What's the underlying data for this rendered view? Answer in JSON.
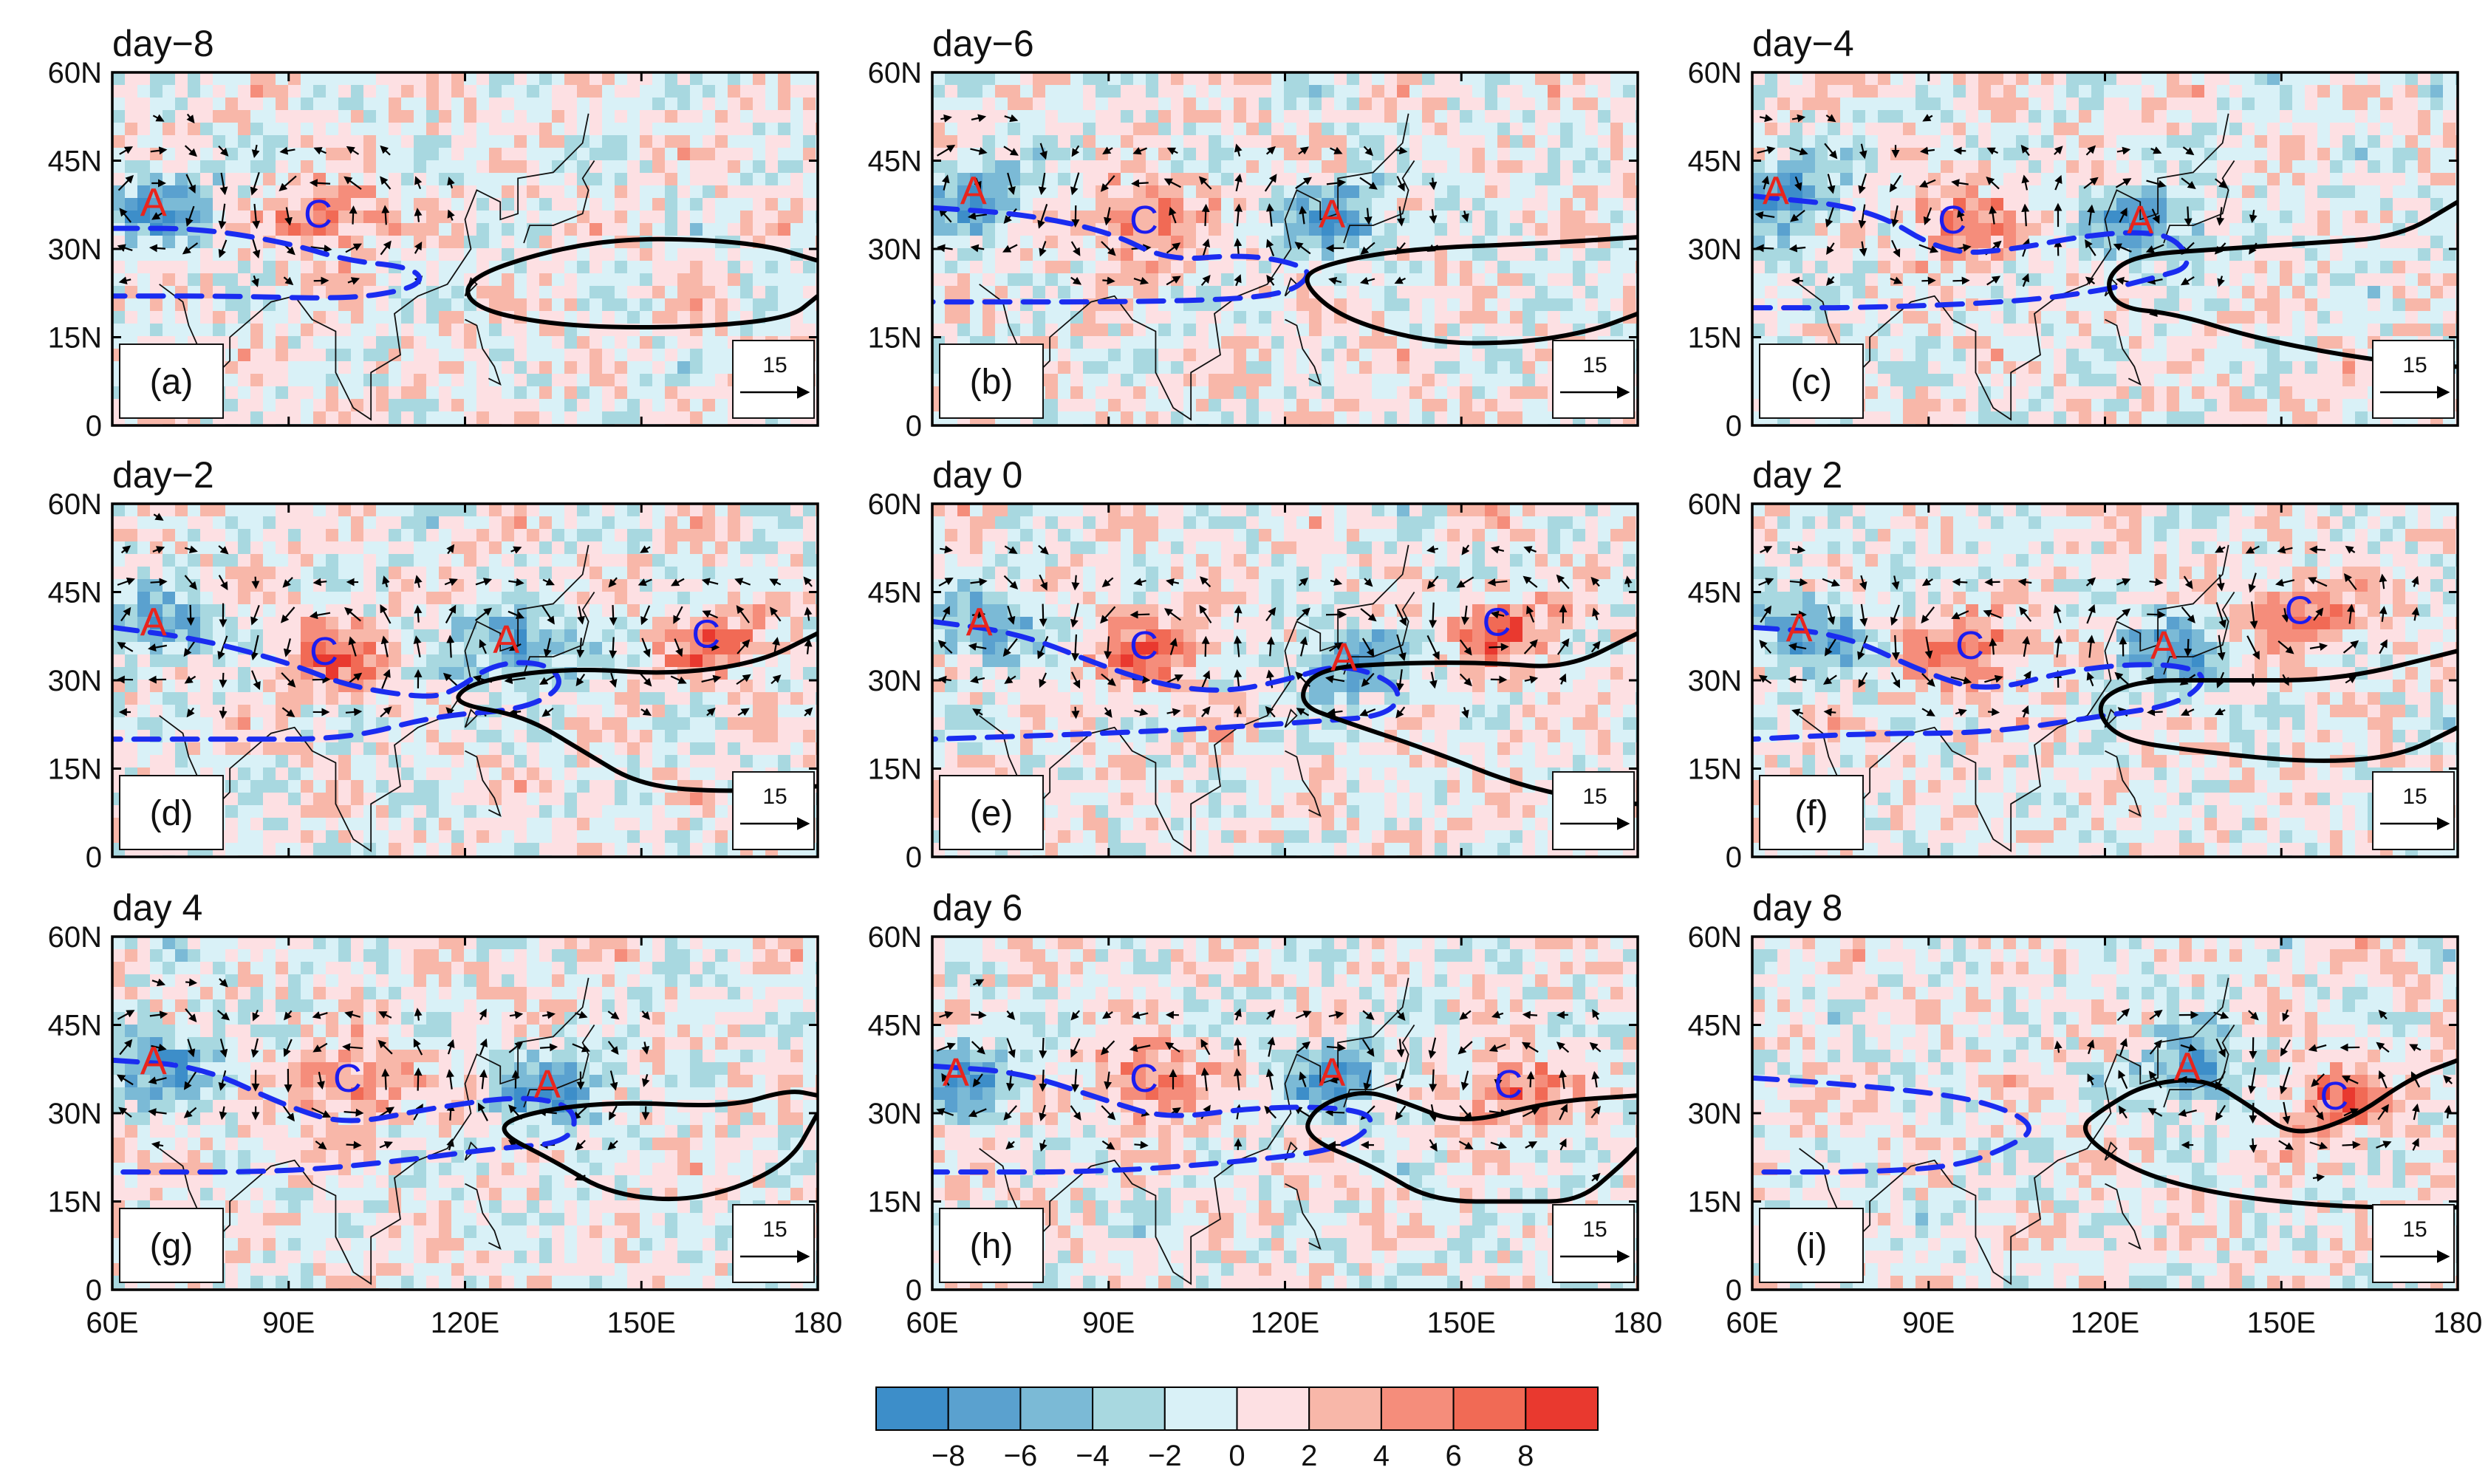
{
  "chart_data": {
    "type": "map-composite",
    "panels": [
      {
        "id": "a",
        "title": "day−8",
        "label": "(a)",
        "centers": [
          {
            "type": "A",
            "lon": 67,
            "lat": 38
          },
          {
            "type": "C",
            "lon": 95,
            "lat": 36
          }
        ],
        "blue_dashed": [
          [
            60,
            33.5
          ],
          [
            75,
            33.5
          ],
          [
            90,
            31
          ],
          [
            100,
            28
          ],
          [
            110,
            27
          ],
          [
            113,
            25
          ],
          [
            110,
            23
          ],
          [
            100,
            21.5
          ],
          [
            80,
            22
          ],
          [
            60,
            22
          ]
        ],
        "black_solid": [
          [
            180,
            28
          ],
          [
            170,
            31
          ],
          [
            150,
            32
          ],
          [
            135,
            30
          ],
          [
            120,
            25
          ],
          [
            121,
            20
          ],
          [
            135,
            17
          ],
          [
            155,
            16.5
          ],
          [
            175,
            18
          ],
          [
            180,
            22
          ]
        ]
      },
      {
        "id": "b",
        "title": "day−6",
        "label": "(b)",
        "centers": [
          {
            "type": "A",
            "lon": 67,
            "lat": 40
          },
          {
            "type": "C",
            "lon": 96,
            "lat": 35
          },
          {
            "type": "A",
            "lon": 128,
            "lat": 36
          }
        ],
        "blue_dashed": [
          [
            60,
            37
          ],
          [
            75,
            36
          ],
          [
            90,
            33
          ],
          [
            100,
            28
          ],
          [
            112,
            29
          ],
          [
            120,
            28
          ],
          [
            125,
            26
          ],
          [
            120,
            22
          ],
          [
            100,
            21
          ],
          [
            60,
            21
          ]
        ],
        "black_solid": [
          [
            180,
            32
          ],
          [
            165,
            31
          ],
          [
            140,
            30
          ],
          [
            125,
            27
          ],
          [
            123,
            24
          ],
          [
            130,
            18
          ],
          [
            145,
            14
          ],
          [
            160,
            14
          ],
          [
            172,
            16
          ],
          [
            180,
            19
          ]
        ]
      },
      {
        "id": "c",
        "title": "day−4",
        "label": "(c)",
        "centers": [
          {
            "type": "A",
            "lon": 64,
            "lat": 40
          },
          {
            "type": "C",
            "lon": 94,
            "lat": 35
          },
          {
            "type": "A",
            "lon": 126,
            "lat": 35
          }
        ],
        "blue_dashed": [
          [
            60,
            39
          ],
          [
            80,
            37
          ],
          [
            93,
            29
          ],
          [
            105,
            30
          ],
          [
            115,
            32
          ],
          [
            125,
            33
          ],
          [
            132,
            32
          ],
          [
            135,
            27
          ],
          [
            128,
            25
          ],
          [
            120,
            23
          ],
          [
            105,
            21
          ],
          [
            80,
            20
          ],
          [
            60,
            20
          ]
        ],
        "black_solid": [
          [
            180,
            38
          ],
          [
            170,
            32
          ],
          [
            155,
            31
          ],
          [
            140,
            30
          ],
          [
            125,
            29
          ],
          [
            120,
            25
          ],
          [
            122,
            20
          ],
          [
            132,
            19
          ],
          [
            145,
            15
          ],
          [
            160,
            12
          ],
          [
            175,
            10
          ],
          [
            180,
            10
          ]
        ]
      },
      {
        "id": "d",
        "title": "day−2",
        "label": "(d)",
        "centers": [
          {
            "type": "A",
            "lon": 67,
            "lat": 40
          },
          {
            "type": "C",
            "lon": 96,
            "lat": 35
          },
          {
            "type": "A",
            "lon": 127,
            "lat": 37
          },
          {
            "type": "C",
            "lon": 161,
            "lat": 38
          }
        ],
        "blue_dashed": [
          [
            60,
            39
          ],
          [
            75,
            37
          ],
          [
            90,
            33
          ],
          [
            100,
            29
          ],
          [
            113,
            27
          ],
          [
            118,
            28
          ],
          [
            125,
            33
          ],
          [
            134,
            33
          ],
          [
            137,
            29
          ],
          [
            130,
            25
          ],
          [
            115,
            24
          ],
          [
            100,
            20
          ],
          [
            80,
            20
          ],
          [
            60,
            20
          ]
        ],
        "black_solid": [
          [
            180,
            38
          ],
          [
            170,
            33
          ],
          [
            155,
            31
          ],
          [
            140,
            32
          ],
          [
            128,
            31
          ],
          [
            120,
            29
          ],
          [
            118,
            26
          ],
          [
            130,
            24
          ],
          [
            140,
            18
          ],
          [
            150,
            12
          ],
          [
            165,
            11
          ],
          [
            180,
            12
          ]
        ]
      },
      {
        "id": "e",
        "title": "day 0",
        "label": "(e)",
        "centers": [
          {
            "type": "A",
            "lon": 68,
            "lat": 40
          },
          {
            "type": "C",
            "lon": 96,
            "lat": 36
          },
          {
            "type": "A",
            "lon": 130,
            "lat": 34
          },
          {
            "type": "C",
            "lon": 156,
            "lat": 40
          }
        ],
        "blue_dashed": [
          [
            60,
            40
          ],
          [
            75,
            38
          ],
          [
            90,
            32
          ],
          [
            100,
            29
          ],
          [
            110,
            28
          ],
          [
            120,
            30
          ],
          [
            130,
            33
          ],
          [
            140,
            29
          ],
          [
            138,
            24
          ],
          [
            125,
            23
          ],
          [
            110,
            22
          ],
          [
            90,
            21
          ],
          [
            60,
            20
          ]
        ],
        "black_solid": [
          [
            180,
            38
          ],
          [
            168,
            32
          ],
          [
            155,
            33
          ],
          [
            140,
            33
          ],
          [
            125,
            32
          ],
          [
            122,
            26
          ],
          [
            130,
            23
          ],
          [
            145,
            18
          ],
          [
            160,
            12
          ],
          [
            175,
            9
          ],
          [
            180,
            9
          ]
        ]
      },
      {
        "id": "f",
        "title": "day 2",
        "label": "(f)",
        "centers": [
          {
            "type": "A",
            "lon": 68,
            "lat": 39
          },
          {
            "type": "C",
            "lon": 97,
            "lat": 36
          },
          {
            "type": "A",
            "lon": 130,
            "lat": 36
          },
          {
            "type": "C",
            "lon": 153,
            "lat": 42
          }
        ],
        "blue_dashed": [
          [
            60,
            39
          ],
          [
            75,
            38
          ],
          [
            90,
            31
          ],
          [
            100,
            28
          ],
          [
            115,
            32
          ],
          [
            130,
            33
          ],
          [
            138,
            31
          ],
          [
            133,
            26
          ],
          [
            120,
            24
          ],
          [
            100,
            21
          ],
          [
            80,
            21
          ],
          [
            60,
            20
          ]
        ],
        "black_solid": [
          [
            180,
            35
          ],
          [
            160,
            30
          ],
          [
            140,
            30
          ],
          [
            125,
            30
          ],
          [
            118,
            26
          ],
          [
            122,
            20
          ],
          [
            135,
            18
          ],
          [
            155,
            16
          ],
          [
            170,
            17
          ],
          [
            180,
            22
          ]
        ]
      },
      {
        "id": "g",
        "title": "day 4",
        "label": "(g)",
        "centers": [
          {
            "type": "A",
            "lon": 67,
            "lat": 39
          },
          {
            "type": "C",
            "lon": 100,
            "lat": 36
          },
          {
            "type": "A",
            "lon": 134,
            "lat": 35
          }
        ],
        "blue_dashed": [
          [
            60,
            39
          ],
          [
            75,
            38
          ],
          [
            90,
            31
          ],
          [
            100,
            28
          ],
          [
            115,
            31
          ],
          [
            130,
            33
          ],
          [
            139,
            31
          ],
          [
            138,
            25
          ],
          [
            125,
            24
          ],
          [
            110,
            22
          ],
          [
            90,
            20
          ],
          [
            60,
            20
          ]
        ],
        "black_solid": [
          [
            180,
            33
          ],
          [
            175,
            34
          ],
          [
            165,
            31
          ],
          [
            145,
            32
          ],
          [
            130,
            30
          ],
          [
            125,
            27
          ],
          [
            135,
            22
          ],
          [
            145,
            16
          ],
          [
            160,
            15
          ],
          [
            175,
            21
          ],
          [
            180,
            30
          ]
        ]
      },
      {
        "id": "h",
        "title": "day 6",
        "label": "(h)",
        "centers": [
          {
            "type": "A",
            "lon": 64,
            "lat": 37
          },
          {
            "type": "C",
            "lon": 96,
            "lat": 36
          },
          {
            "type": "A",
            "lon": 128,
            "lat": 37
          },
          {
            "type": "C",
            "lon": 158,
            "lat": 35
          }
        ],
        "blue_dashed": [
          [
            60,
            38
          ],
          [
            75,
            37
          ],
          [
            90,
            32
          ],
          [
            100,
            29
          ],
          [
            115,
            31
          ],
          [
            130,
            31
          ],
          [
            136,
            29
          ],
          [
            130,
            24
          ],
          [
            115,
            22
          ],
          [
            90,
            20
          ],
          [
            60,
            20
          ]
        ],
        "black_solid": [
          [
            180,
            33
          ],
          [
            165,
            32
          ],
          [
            150,
            28
          ],
          [
            140,
            32
          ],
          [
            133,
            34
          ],
          [
            125,
            31
          ],
          [
            123,
            26
          ],
          [
            135,
            21
          ],
          [
            145,
            15
          ],
          [
            160,
            15
          ],
          [
            170,
            15
          ],
          [
            177,
            21
          ],
          [
            180,
            24
          ]
        ]
      },
      {
        "id": "i",
        "title": "day 8",
        "label": "(i)",
        "centers": [
          {
            "type": "A",
            "lon": 134,
            "lat": 38
          },
          {
            "type": "C",
            "lon": 159,
            "lat": 33
          }
        ],
        "blue_dashed": [
          [
            60,
            36
          ],
          [
            75,
            35
          ],
          [
            95,
            33
          ],
          [
            105,
            30
          ],
          [
            108,
            27
          ],
          [
            103,
            24
          ],
          [
            95,
            21
          ],
          [
            80,
            20
          ],
          [
            60,
            20
          ]
        ],
        "black_solid": [
          [
            180,
            39
          ],
          [
            172,
            36
          ],
          [
            162,
            29
          ],
          [
            152,
            26
          ],
          [
            145,
            31
          ],
          [
            137,
            36
          ],
          [
            127,
            35
          ],
          [
            120,
            31
          ],
          [
            115,
            27
          ],
          [
            125,
            20
          ],
          [
            140,
            16
          ],
          [
            160,
            14
          ],
          [
            180,
            14
          ]
        ]
      }
    ],
    "x_axis": {
      "ticks": [
        60,
        90,
        120,
        150,
        180
      ],
      "tick_labels": [
        "60E",
        "90E",
        "120E",
        "150E",
        "180"
      ],
      "range": [
        60,
        180
      ]
    },
    "y_axis": {
      "ticks": [
        0,
        15,
        30,
        45,
        60
      ],
      "tick_labels": [
        "0",
        "15N",
        "30N",
        "45N",
        "60N"
      ],
      "range": [
        0,
        60
      ]
    },
    "reference_vector": {
      "value": 15,
      "label": "15"
    },
    "colorbar": {
      "levels": [
        -10,
        -8,
        -6,
        -4,
        -2,
        0,
        2,
        4,
        6,
        8,
        10
      ],
      "tick_labels": [
        "−8",
        "−6",
        "−4",
        "−2",
        "0",
        "2",
        "4",
        "6",
        "8"
      ],
      "colors": [
        "#3d8ec9",
        "#5aa1cf",
        "#7bbad6",
        "#a8d8e0",
        "#d9f1f7",
        "#fde0e3",
        "#f8b7a9",
        "#f58d7b",
        "#f16a55",
        "#e9392f"
      ]
    },
    "legend": {
      "anticyclone_marker": "A",
      "cyclone_marker": "C",
      "anticyclone_color": "#e8251d",
      "cyclone_color": "#1c1cef",
      "dashed_line_color": "#1a2cf0",
      "solid_line_color": "#000000"
    }
  }
}
